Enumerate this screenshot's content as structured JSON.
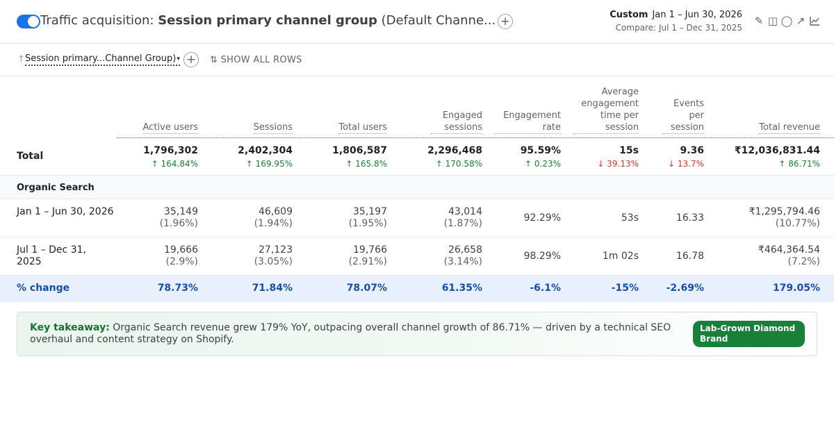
{
  "header": {
    "title_prefix": "Traffic acquisition: ",
    "title_bold": "Session primary channel group",
    "title_suffix": " (Default Channe...",
    "date_label": "Custom",
    "date_range": "Jan 1 – Jun 30, 2026",
    "compare_range": "Compare: Jul 1 – Dec 31, 2025",
    "toolbar_icons": [
      "edit-icon",
      "compare-icon",
      "insights-icon",
      "share-icon",
      "chart-icon"
    ]
  },
  "dimension_bar": {
    "sort_arrow": "↑",
    "dimension": "Session primary...Channel Group)",
    "caret": "▾",
    "plus": "+",
    "show_all": "⇅ SHOW ALL ROWS"
  },
  "columns": [
    {
      "label": "Active users"
    },
    {
      "label": "Sessions"
    },
    {
      "label": "Total users"
    },
    {
      "label": "Engaged sessions"
    },
    {
      "label": "Engagement rate"
    },
    {
      "label": "Average engagement time per session"
    },
    {
      "label": "Events per session"
    },
    {
      "label": "Total revenue"
    }
  ],
  "total": {
    "label": "Total",
    "values": [
      "1,796,302",
      "2,402,304",
      "1,806,587",
      "2,296,468",
      "95.59%",
      "15s",
      "9.36",
      "₹12,036,831.44"
    ],
    "changes": [
      "↑ 164.84%",
      "↑ 169.95%",
      "↑ 165.8%",
      "↑ 170.58%",
      "↑ 0.23%",
      "↓ 39.13%",
      "↓ 13.7%",
      "↑ 86.71%"
    ],
    "change_dirs": [
      "up",
      "up",
      "up",
      "up",
      "up",
      "down",
      "down",
      "up"
    ]
  },
  "group": {
    "label": "Organic Search"
  },
  "rows": [
    {
      "period": "Jan 1 – Jun 30, 2026",
      "values": [
        "35,149",
        "46,609",
        "35,197",
        "43,014",
        "92.29%",
        "53s",
        "16.33",
        "₹1,295,794.46"
      ],
      "shares": [
        "(1.96%)",
        "(1.94%)",
        "(1.95%)",
        "(1.87%)",
        "",
        "",
        "",
        "(10.77%)"
      ]
    },
    {
      "period": "Jul 1 – Dec 31, 2025",
      "values": [
        "19,666",
        "27,123",
        "19,766",
        "26,658",
        "98.29%",
        "1m 02s",
        "16.78",
        "₹464,364.54"
      ],
      "shares": [
        "(2.9%)",
        "(3.05%)",
        "(2.91%)",
        "(3.14%)",
        "",
        "",
        "",
        "(7.2%)"
      ]
    }
  ],
  "change_row": {
    "label": "% change",
    "values": [
      "78.73%",
      "71.84%",
      "78.07%",
      "61.35%",
      "-6.1%",
      "-15%",
      "-2.69%",
      "179.05%"
    ]
  },
  "takeaway": {
    "lead": "Key takeaway:",
    "text": " Organic Search revenue grew 179% YoY, outpacing overall channel growth of 86.71% — driven by a technical SEO overhaul and content strategy on Shopify.",
    "badge": "Lab-Grown Diamond Brand"
  },
  "colors": {
    "accent": "#1a73e8",
    "positive": "#188038",
    "negative": "#d93025",
    "change_row_bg": "#e8f0fe",
    "badge_bg": "#188038"
  }
}
